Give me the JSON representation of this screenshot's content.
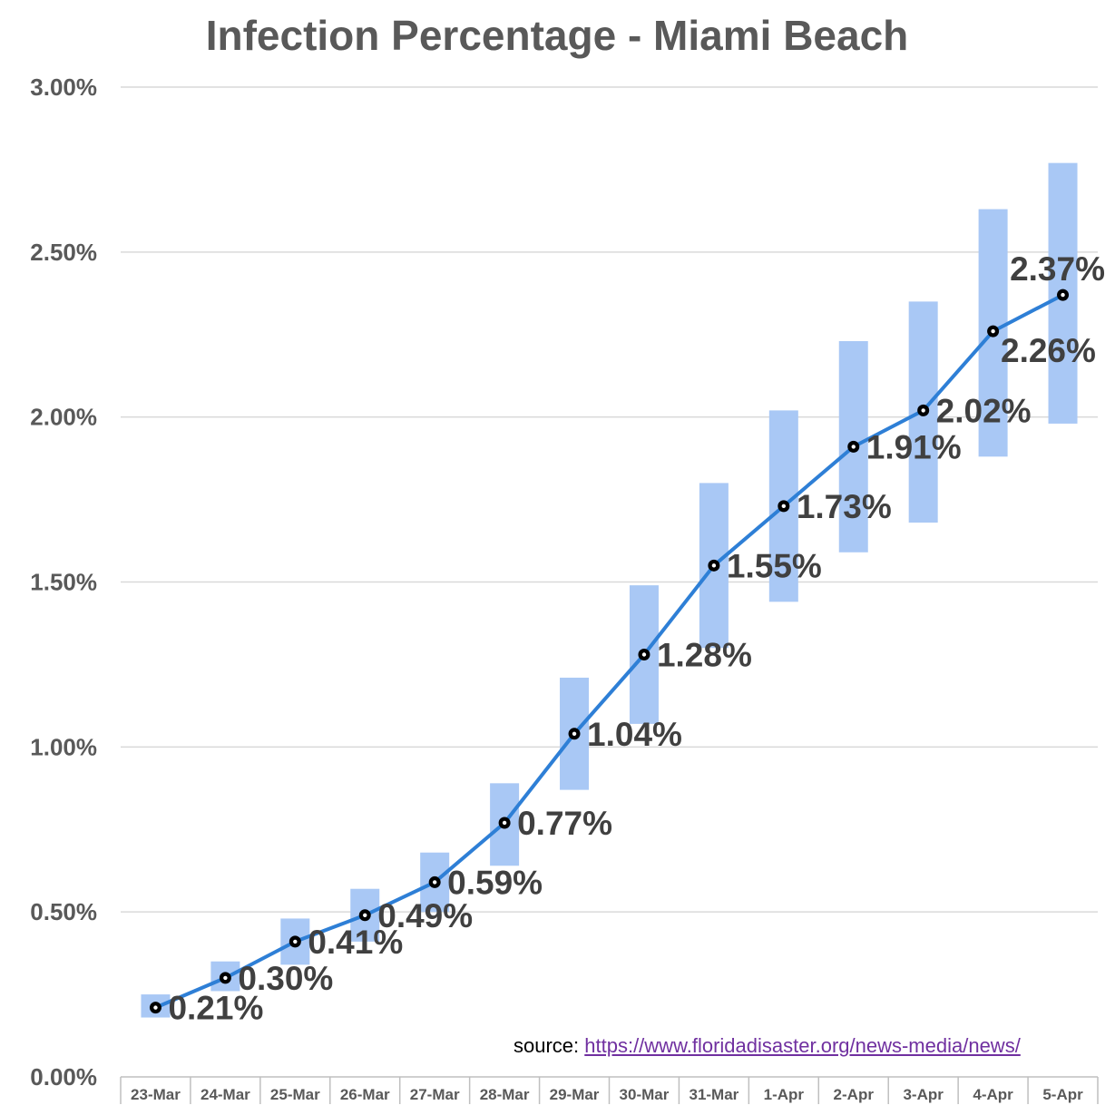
{
  "chart_data": {
    "type": "line",
    "title": "Infection Percentage - Miami Beach",
    "xlabel": "",
    "ylabel": "",
    "categories": [
      "23-Mar",
      "24-Mar",
      "25-Mar",
      "26-Mar",
      "27-Mar",
      "28-Mar",
      "29-Mar",
      "30-Mar",
      "31-Mar",
      "1-Apr",
      "2-Apr",
      "3-Apr",
      "4-Apr",
      "5-Apr"
    ],
    "values": [
      0.21,
      0.3,
      0.41,
      0.49,
      0.59,
      0.77,
      1.04,
      1.28,
      1.55,
      1.73,
      1.91,
      2.02,
      2.26,
      2.37
    ],
    "value_labels": [
      "0.21%",
      "0.30%",
      "0.41%",
      "0.49%",
      "0.59%",
      "0.77%",
      "1.04%",
      "1.28%",
      "1.55%",
      "1.73%",
      "1.91%",
      "2.02%",
      "2.26%",
      "2.37%"
    ],
    "ranges": {
      "low": [
        0.18,
        0.26,
        0.34,
        0.41,
        0.5,
        0.64,
        0.87,
        1.07,
        1.3,
        1.44,
        1.59,
        1.68,
        1.88,
        1.98
      ],
      "high": [
        0.25,
        0.35,
        0.48,
        0.57,
        0.68,
        0.89,
        1.21,
        1.49,
        1.8,
        2.02,
        2.23,
        2.35,
        2.63,
        2.77
      ]
    },
    "ylim": [
      0,
      3.0
    ],
    "yticks": [
      0,
      0.5,
      1.0,
      1.5,
      2.0,
      2.5,
      3.0
    ],
    "ytick_labels": [
      "0.00%",
      "0.50%",
      "1.00%",
      "1.50%",
      "2.00%",
      "2.50%",
      "3.00%"
    ],
    "grid": true,
    "colors": {
      "line": "#2e7fd6",
      "range_bar": "#a9c8f5",
      "marker_fill": "#000000",
      "marker_ring": "#ffffff"
    }
  },
  "source": {
    "prefix": "source: ",
    "link_text": "https://www.floridadisaster.org/news-media/news/"
  }
}
